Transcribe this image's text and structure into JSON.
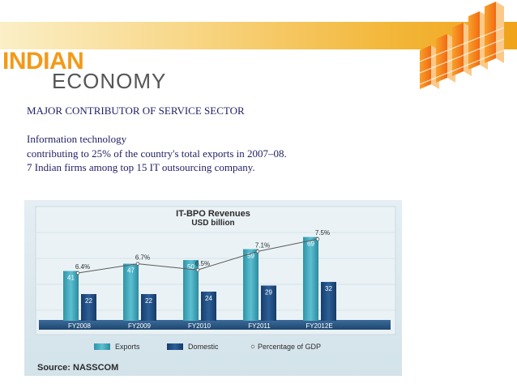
{
  "header": {
    "brand_top": "INDIAN",
    "brand_bottom": "ECONOMY"
  },
  "content": {
    "heading": "MAJOR CONTRIBUTOR OF SERVICE SECTOR",
    "lines": [
      "Information technology",
      "contributing to 25% of the country's total exports in 2007–08.",
      "7 Indian firms among top 15 IT outsourcing company."
    ]
  },
  "chart_data": {
    "type": "bar",
    "title": "IT-BPO Revenues",
    "subtitle": "USD billion",
    "categories": [
      "FY2008",
      "FY2009",
      "FY2010",
      "FY2011",
      "FY2012E"
    ],
    "series": [
      {
        "name": "Exports",
        "values": [
          41,
          47,
          50,
          59,
          69
        ],
        "color": "#3aa6b9"
      },
      {
        "name": "Domestic",
        "values": [
          22,
          22,
          24,
          29,
          32
        ],
        "color": "#1f4f86"
      }
    ],
    "line_series": {
      "name": "Percentage of GDP",
      "labels": [
        "6.4%",
        "6.7%",
        "6.5%",
        "7.1%",
        "7.5%"
      ],
      "values": [
        6.4,
        6.7,
        6.5,
        7.1,
        7.5
      ]
    },
    "ylim": [
      0,
      80
    ],
    "legend": "bottom",
    "source": "Source: NASSCOM"
  }
}
